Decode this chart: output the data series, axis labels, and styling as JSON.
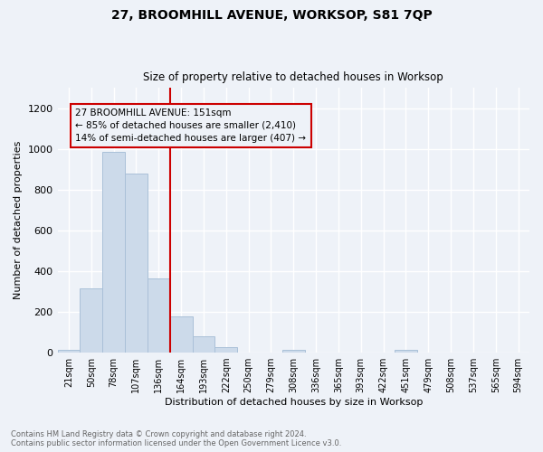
{
  "title": "27, BROOMHILL AVENUE, WORKSOP, S81 7QP",
  "subtitle": "Size of property relative to detached houses in Worksop",
  "xlabel": "Distribution of detached houses by size in Worksop",
  "ylabel": "Number of detached properties",
  "bar_color": "#ccdaea",
  "bar_edge_color": "#aac0d8",
  "categories": [
    "21sqm",
    "50sqm",
    "78sqm",
    "107sqm",
    "136sqm",
    "164sqm",
    "193sqm",
    "222sqm",
    "250sqm",
    "279sqm",
    "308sqm",
    "336sqm",
    "365sqm",
    "393sqm",
    "422sqm",
    "451sqm",
    "479sqm",
    "508sqm",
    "537sqm",
    "565sqm",
    "594sqm"
  ],
  "values": [
    13,
    317,
    985,
    878,
    365,
    178,
    80,
    25,
    0,
    0,
    13,
    0,
    0,
    0,
    0,
    13,
    0,
    0,
    0,
    0,
    0
  ],
  "vline_x": 4.5,
  "vline_color": "#cc0000",
  "annotation_text": "27 BROOMHILL AVENUE: 151sqm\n← 85% of detached houses are smaller (2,410)\n14% of semi-detached houses are larger (407) →",
  "ylim": [
    0,
    1300
  ],
  "yticks": [
    0,
    200,
    400,
    600,
    800,
    1000,
    1200
  ],
  "footer": "Contains HM Land Registry data © Crown copyright and database right 2024.\nContains public sector information licensed under the Open Government Licence v3.0.",
  "bg_color": "#eef2f8",
  "grid_color": "#ffffff",
  "figsize": [
    6.0,
    5.0
  ],
  "dpi": 100
}
